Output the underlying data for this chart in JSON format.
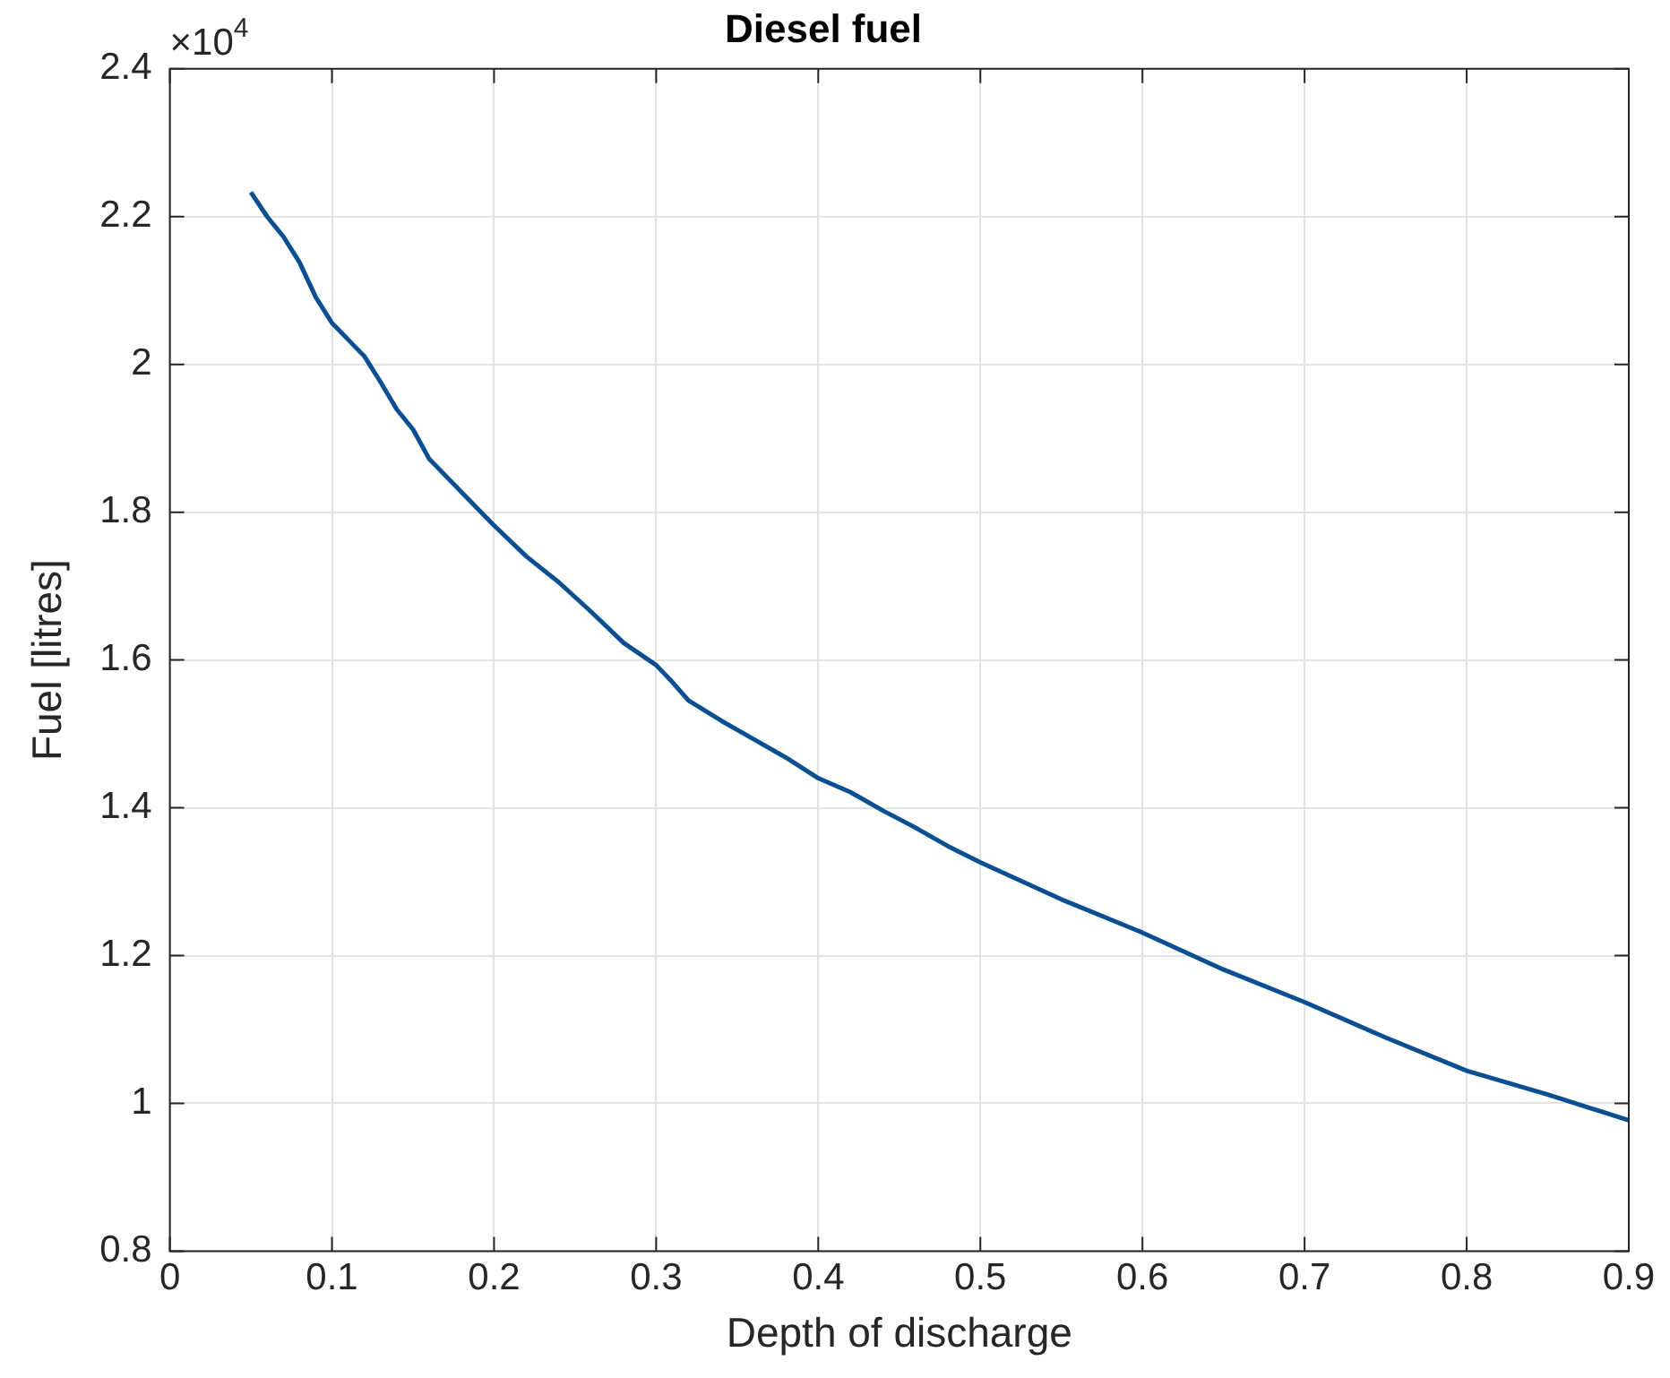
{
  "chart_data": {
    "type": "line",
    "title": "Diesel fuel",
    "xlabel": "Depth of discharge",
    "ylabel": "Fuel [litres]",
    "annotations": [
      "×10$^{4}$"
    ],
    "x": [
      0.05,
      0.06,
      0.07,
      0.08,
      0.09,
      0.1,
      0.12,
      0.13,
      0.14,
      0.15,
      0.16,
      0.18,
      0.2,
      0.22,
      0.24,
      0.26,
      0.28,
      0.3,
      0.31,
      0.32,
      0.34,
      0.36,
      0.38,
      0.4,
      0.42,
      0.44,
      0.46,
      0.48,
      0.5,
      0.55,
      0.6,
      0.65,
      0.7,
      0.75,
      0.8,
      0.85,
      0.9
    ],
    "series": [
      {
        "color": "#0b4f93",
        "values": [
          2.233,
          2.2,
          2.173,
          2.138,
          2.091,
          2.056,
          2.011,
          1.976,
          1.939,
          1.912,
          1.872,
          1.827,
          1.782,
          1.74,
          1.705,
          1.665,
          1.623,
          1.593,
          1.57,
          1.545,
          1.518,
          1.493,
          1.468,
          1.44,
          1.421,
          1.396,
          1.373,
          1.348,
          1.326,
          1.276,
          1.231,
          1.181,
          1.137,
          1.089,
          1.044,
          1.012,
          0.977
        ]
      }
    ],
    "xlim": [
      0,
      0.9
    ],
    "xticks": [
      0,
      0.1,
      0.2,
      0.3,
      0.4,
      0.5,
      0.6,
      0.7,
      0.8,
      0.9
    ],
    "ylim": [
      0.8,
      2.4
    ],
    "yticks": [
      0.8,
      1,
      1.2,
      1.4,
      1.6,
      1.8,
      2,
      2.2,
      2.4
    ],
    "grid": true
  }
}
